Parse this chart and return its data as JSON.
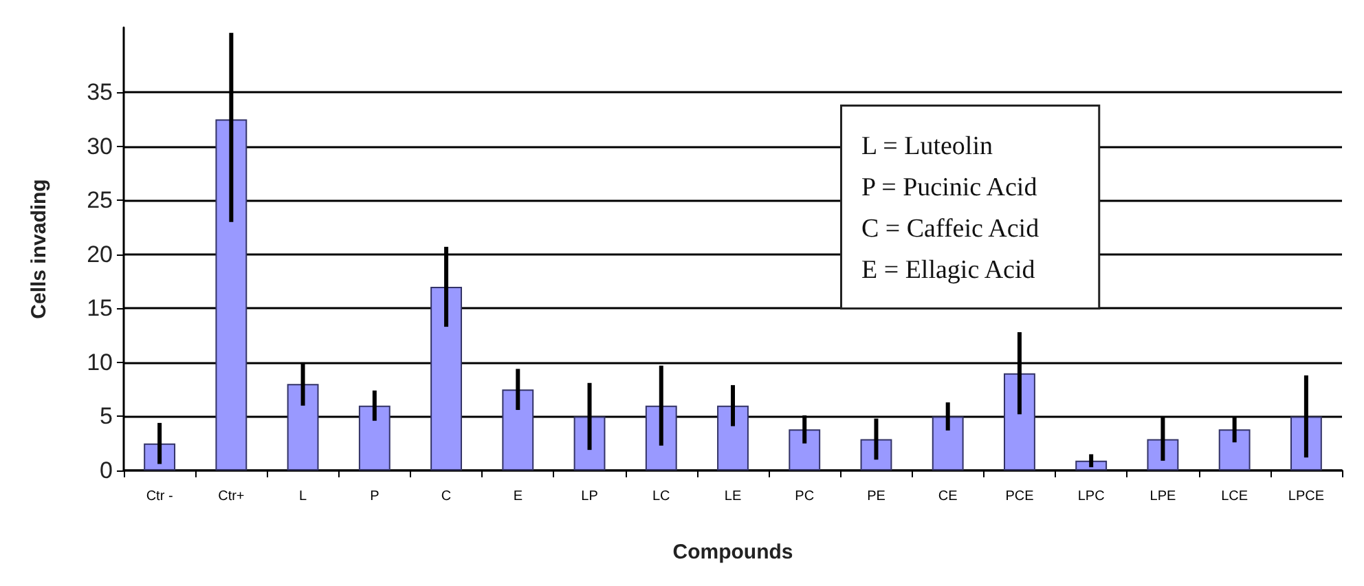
{
  "chart_data": {
    "type": "bar",
    "categories": [
      "Ctr -",
      "Ctr+",
      "L",
      "P",
      "C",
      "E",
      "LP",
      "LC",
      "LE",
      "PC",
      "PE",
      "CE",
      "PCE",
      "LPC",
      "LPE",
      "LCE",
      "LPCE"
    ],
    "values": [
      2.5,
      32.5,
      8,
      6,
      17,
      7.5,
      5,
      6,
      6,
      3.8,
      2.9,
      5,
      9,
      0.9,
      2.9,
      3.8,
      5
    ],
    "errors": [
      1.9,
      [
        23,
        40.5
      ],
      2,
      1.4,
      3.7,
      1.9,
      3.1,
      3.7,
      1.9,
      1.3,
      1.9,
      1.3,
      3.8,
      0.6,
      2,
      1.2,
      3.8
    ],
    "color": "#9999ff",
    "xlabel": "Compounds",
    "ylabel": "Cells invading",
    "ylim": [
      0,
      41
    ],
    "yticks": [
      0,
      5,
      10,
      15,
      20,
      25,
      30,
      35
    ],
    "grid": "y",
    "annotations": [
      "L = Luteolin",
      "P = Pucinic Acid",
      "C = Caffeic Acid",
      "E = Ellagic Acid"
    ]
  }
}
